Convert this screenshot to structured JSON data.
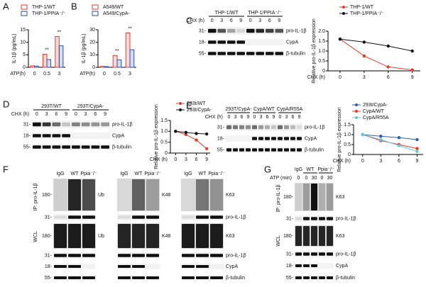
{
  "chart_data": [
    {
      "panel": "A",
      "type": "bar",
      "y_label": "IL-1β (pg/mL)",
      "x_label": "ATP(h)",
      "categories": [
        "0",
        "0.5",
        "3"
      ],
      "series": [
        {
          "name": "THP-1/WT",
          "color": "#e23b2e",
          "values": [
            0.6,
            5.2,
            12.3
          ]
        },
        {
          "name": "THP-1/PPIA⁻/⁻",
          "color": "#2f4fa8",
          "values": [
            0.5,
            3.1,
            8.6
          ]
        }
      ],
      "ylim": [
        0,
        15
      ],
      "yticks": [
        0,
        5,
        10,
        15
      ],
      "annotations": [
        {
          "category": "0.5",
          "text": "**"
        },
        {
          "category": "3",
          "text": "**"
        }
      ]
    },
    {
      "panel": "B",
      "type": "bar",
      "y_label": "IL-1β (pg/mL)",
      "x_label": "ATP(h)",
      "categories": [
        "0",
        "0.5",
        "3"
      ],
      "series": [
        {
          "name": "A549/WT",
          "color": "#e23b2e",
          "values": [
            0.8,
            9.5,
            27.5
          ]
        },
        {
          "name": "A549/CypA-",
          "color": "#2f4fa8",
          "values": [
            0.6,
            6.0,
            14.0
          ]
        }
      ],
      "ylim": [
        0,
        30
      ],
      "yticks": [
        0,
        10,
        20,
        30
      ],
      "annotations": [
        {
          "category": "0.5",
          "text": "**"
        },
        {
          "category": "3",
          "text": "**"
        }
      ]
    },
    {
      "panel": "",
      "type": "line",
      "y_label": "Relative pro-IL-1β expression",
      "x_label": "CHX (h)",
      "x": [
        0,
        3,
        6,
        9
      ],
      "xlim": [
        -1.5,
        10
      ],
      "xticks": [
        0,
        3,
        6,
        9
      ],
      "series": [
        {
          "name": "THP-1/WT",
          "color": "#e23b2e",
          "values": [
            1.6,
            0.75,
            0.2,
            0.05
          ]
        },
        {
          "name": "THP-1/PPIA⁻/⁻",
          "color": "#111111",
          "values": [
            1.6,
            1.45,
            1.25,
            1.0
          ]
        }
      ],
      "ylim": [
        0,
        2
      ],
      "yticks": [
        0,
        0.5,
        {
          "value": 1,
          "label": "1.0"
        },
        1.5,
        {
          "value": 2,
          "label": "2.0"
        }
      ]
    },
    {
      "panel": "",
      "type": "line",
      "y_label": "Relative pro-IL-1β expression",
      "x_label": "CHX (h)",
      "x": [
        0,
        3,
        6,
        9
      ],
      "xlim": [
        -1.5,
        10
      ],
      "xticks": [
        0,
        3,
        6,
        9
      ],
      "series": [
        {
          "name": "293t/WT",
          "color": "#e23b2e",
          "values": [
            1.0,
            0.85,
            0.6,
            0.2
          ]
        },
        {
          "name": "293t/CypA-",
          "color": "#111111",
          "values": [
            1.0,
            0.95,
            0.9,
            0.88
          ]
        }
      ],
      "ylim": [
        0,
        1.5
      ],
      "yticks": [
        0,
        0.5,
        {
          "value": 1,
          "label": "1.0"
        },
        1.5
      ]
    },
    {
      "panel": "",
      "type": "line",
      "y_label": "Relative pro-IL-1β expression",
      "x_label": "CHX (h)",
      "x": [
        0,
        3,
        6,
        9
      ],
      "xlim": [
        -1.5,
        10
      ],
      "xticks": [
        0,
        3,
        6,
        9
      ],
      "series": [
        {
          "name": "293t/CypA-",
          "color": "#2f5fa8",
          "values": [
            1.0,
            0.92,
            0.85,
            0.75
          ]
        },
        {
          "name": "CypA/WT",
          "color": "#e23b2e",
          "values": [
            1.0,
            0.7,
            0.5,
            0.3
          ]
        },
        {
          "name": "CypA/R55A",
          "color": "#6cc5d6",
          "values": [
            1.0,
            0.75,
            0.45,
            0.15
          ]
        }
      ],
      "ylim": [
        0,
        1.5
      ],
      "yticks": [
        0,
        0.5,
        {
          "value": 1,
          "label": "1.0"
        },
        1.5
      ]
    }
  ],
  "blots": {
    "C": {
      "letter": "C",
      "groups": [
        "THP-1/WT",
        "THP-1/PPIA⁻/⁻"
      ],
      "x_label": "CHX (h)",
      "lanes": [
        "0",
        "3",
        "6",
        "9",
        "0",
        "3",
        "6",
        "9"
      ],
      "markers": [
        "31-",
        "18-",
        "55-"
      ],
      "proteins": [
        "pro-IL-1β",
        "CypA",
        "β-tubulin"
      ]
    },
    "D": {
      "letter": "D",
      "groups": [
        "293T/WT",
        "293T/CypA-"
      ],
      "x_label": "CHX (h)",
      "lanes": [
        "0",
        "3",
        "6",
        "9",
        "0",
        "3",
        "6",
        "9"
      ],
      "markers": [
        "31-",
        "18-",
        "55-"
      ],
      "proteins": [
        "pro-IL-1β",
        "CypA",
        "β-tubulin"
      ]
    },
    "E": {
      "letter": "E",
      "groups": [
        "293T/CypA-",
        "CypA/WT",
        "CypA/R55A"
      ],
      "x_label": "CHX (h)",
      "lanes": [
        "0",
        "3",
        "6",
        "9",
        "0",
        "3",
        "6",
        "9",
        "0",
        "3",
        "6",
        "9"
      ],
      "markers": [
        "31-",
        "18-",
        "55-"
      ],
      "proteins": [
        "pro-IL-1β",
        "CypA",
        "β-tubulin"
      ]
    },
    "F": {
      "letter": "F",
      "lanes": [
        "IgG",
        "WT",
        "Ppia⁻/⁻"
      ],
      "ip": "IP: pro-IL-1β",
      "wcl": "WCL",
      "markers": [
        "180-",
        "31-",
        "180-",
        "31-",
        "18-",
        "55-"
      ],
      "probes": [
        "Ub",
        "K48",
        "K63"
      ],
      "rows": [
        "pro-IL-1β",
        "pro-IL-1β",
        "CypA",
        "β-tubulin"
      ]
    },
    "G": {
      "letter": "G",
      "groups": [
        "IgG",
        "WT",
        "Ppia⁻/⁻"
      ],
      "x_label": "ATP (min)",
      "lanes": [
        "0",
        "0",
        "30",
        "0",
        "30"
      ],
      "ip": "IP: pro-IL-1β",
      "wcl": "WCL",
      "markers": [
        "180-",
        "31-",
        "180-",
        "31-",
        "18-",
        "55-"
      ],
      "proteins": [
        "K63",
        "pro-IL-1β",
        "K63",
        "pro-IL-1β",
        "CypA",
        "β-tubulin"
      ]
    }
  }
}
